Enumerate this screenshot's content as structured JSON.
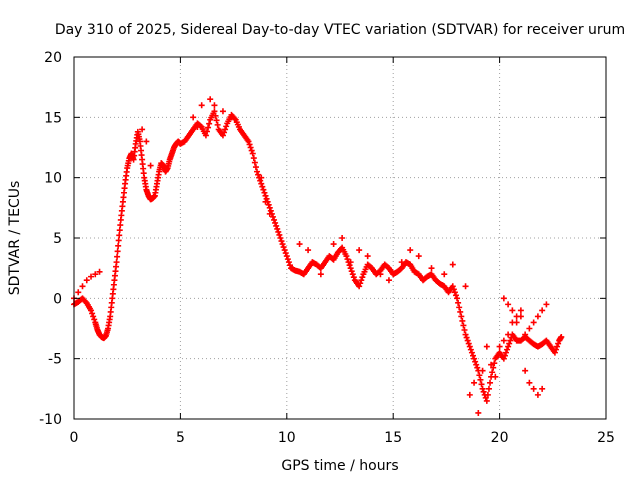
{
  "chart_data": {
    "type": "scatter",
    "title": "Day 310 of 2025, Sidereal Day-to-day VTEC variation (SDTVAR) for receiver urum",
    "xlabel": "GPS time / hours",
    "ylabel": "SDTVAR / TECUs",
    "xlim": [
      0,
      25
    ],
    "ylim": [
      -10,
      20
    ],
    "xticks": [
      "0",
      "5",
      "10",
      "15",
      "20",
      "25"
    ],
    "yticks": [
      "-10",
      "-5",
      "0",
      "5",
      "10",
      "15",
      "20"
    ],
    "grid": true,
    "marker": "plus",
    "color": "#ff0000",
    "series": [
      {
        "x": [
          0.0,
          0.2,
          0.4,
          0.6,
          0.8,
          1.0,
          1.1,
          1.2,
          1.3,
          1.4,
          1.5,
          1.6,
          1.7,
          1.8,
          1.9,
          2.0,
          2.1,
          2.2,
          2.3,
          2.4,
          2.5,
          2.6,
          2.7,
          2.8,
          2.9,
          3.0,
          3.1,
          3.2,
          3.3,
          3.4,
          3.5,
          3.6,
          3.7,
          3.8,
          3.9,
          4.0,
          4.1,
          4.2,
          4.3,
          4.4,
          4.5,
          4.6,
          4.7,
          4.8,
          4.9,
          5.0,
          5.2,
          5.4,
          5.6,
          5.8,
          6.0,
          6.2,
          6.4,
          6.6,
          6.8,
          7.0,
          7.2,
          7.4,
          7.6,
          7.8,
          8.0,
          8.2,
          8.4,
          8.6,
          8.8,
          9.0,
          9.2,
          9.4,
          9.6,
          9.8,
          10.0,
          10.2,
          10.4,
          10.6,
          10.8,
          11.0,
          11.2,
          11.4,
          11.6,
          11.8,
          12.0,
          12.2,
          12.4,
          12.6,
          12.8,
          13.0,
          13.2,
          13.4,
          13.6,
          13.8,
          14.0,
          14.2,
          14.4,
          14.6,
          14.8,
          15.0,
          15.2,
          15.4,
          15.6,
          15.8,
          16.0,
          16.2,
          16.4,
          16.6,
          16.8,
          17.0,
          17.2,
          17.4,
          17.6,
          17.8,
          18.0,
          18.2,
          18.4,
          18.6,
          18.8,
          19.0,
          19.2,
          19.4,
          19.6,
          19.8,
          20.0,
          20.2,
          20.4,
          20.6,
          20.8,
          21.0,
          21.2,
          21.4,
          21.6,
          21.8,
          22.0,
          22.2,
          22.4,
          22.6,
          22.8,
          22.9
        ],
        "y": [
          -0.5,
          -0.3,
          0.0,
          -0.4,
          -1.0,
          -2.0,
          -2.6,
          -3.0,
          -3.2,
          -3.3,
          -3.1,
          -2.5,
          -1.5,
          0.0,
          1.5,
          3.0,
          4.8,
          6.5,
          8.0,
          9.5,
          10.8,
          11.6,
          12.0,
          11.5,
          12.8,
          13.8,
          13.0,
          11.5,
          10.0,
          9.0,
          8.5,
          8.2,
          8.3,
          8.5,
          9.5,
          10.5,
          11.2,
          11.0,
          10.5,
          10.8,
          11.5,
          12.0,
          12.5,
          12.8,
          13.0,
          12.8,
          13.0,
          13.5,
          14.0,
          14.5,
          14.2,
          13.5,
          14.8,
          15.5,
          14.0,
          13.5,
          14.5,
          15.2,
          14.8,
          14.0,
          13.5,
          13.0,
          12.0,
          10.5,
          9.5,
          8.5,
          7.5,
          6.5,
          5.5,
          4.5,
          3.5,
          2.5,
          2.3,
          2.2,
          2.0,
          2.5,
          3.0,
          2.8,
          2.5,
          3.0,
          3.5,
          3.2,
          3.8,
          4.2,
          3.5,
          2.5,
          1.5,
          1.0,
          2.0,
          2.8,
          2.5,
          2.0,
          2.3,
          2.8,
          2.5,
          2.0,
          2.2,
          2.5,
          3.0,
          2.8,
          2.2,
          2.0,
          1.5,
          1.8,
          2.0,
          1.5,
          1.2,
          1.0,
          0.5,
          1.0,
          0.0,
          -1.5,
          -3.0,
          -4.0,
          -5.0,
          -6.0,
          -7.5,
          -8.5,
          -6.5,
          -5.0,
          -4.5,
          -5.0,
          -4.0,
          -3.0,
          -3.5,
          -3.5,
          -3.2,
          -3.5,
          -3.8,
          -4.0,
          -3.8,
          -3.5,
          -4.0,
          -4.5,
          -3.5,
          -3.2
        ]
      },
      {
        "x": [
          0.0,
          0.2,
          0.4,
          0.6,
          0.8,
          1.0,
          1.2,
          3.2,
          3.4,
          3.6,
          5.6,
          5.8,
          6.0,
          6.4,
          6.6,
          7.0,
          7.4,
          8.8,
          9.0,
          9.2,
          10.6,
          11.0,
          11.6,
          12.2,
          12.6,
          13.0,
          13.4,
          13.8,
          14.4,
          14.8,
          15.4,
          15.8,
          16.2,
          16.8,
          17.4,
          17.8,
          18.4,
          18.6,
          18.8,
          19.0,
          19.2,
          19.4,
          19.6,
          19.8,
          20.0,
          20.2,
          20.4,
          20.6,
          20.8,
          21.0,
          21.2,
          21.4,
          21.6,
          21.8,
          22.0
        ],
        "y": [
          0.0,
          0.5,
          1.0,
          1.5,
          1.8,
          2.0,
          2.2,
          14.0,
          13.0,
          11.0,
          15.0,
          14.2,
          16.0,
          16.5,
          16.0,
          15.5,
          15.0,
          10.0,
          8.0,
          7.0,
          4.5,
          4.0,
          2.0,
          4.5,
          5.0,
          3.0,
          4.0,
          3.5,
          2.0,
          1.5,
          3.0,
          4.0,
          3.5,
          2.5,
          2.0,
          2.8,
          1.0,
          -8.0,
          -7.0,
          -9.5,
          -6.0,
          -4.0,
          -5.5,
          -6.5,
          -4.0,
          -3.5,
          -3.0,
          -2.0,
          -1.5,
          -1.0,
          -6.0,
          -7.0,
          -7.5,
          -8.0,
          -7.5
        ]
      },
      {
        "x": [
          20.2,
          20.4,
          20.6,
          20.8,
          21.0,
          21.2,
          21.4,
          21.6,
          21.8,
          22.0,
          22.2
        ],
        "y": [
          0.0,
          -0.5,
          -1.0,
          -2.0,
          -1.5,
          -3.0,
          -2.5,
          -2.0,
          -1.5,
          -1.0,
          -0.5
        ]
      }
    ]
  }
}
